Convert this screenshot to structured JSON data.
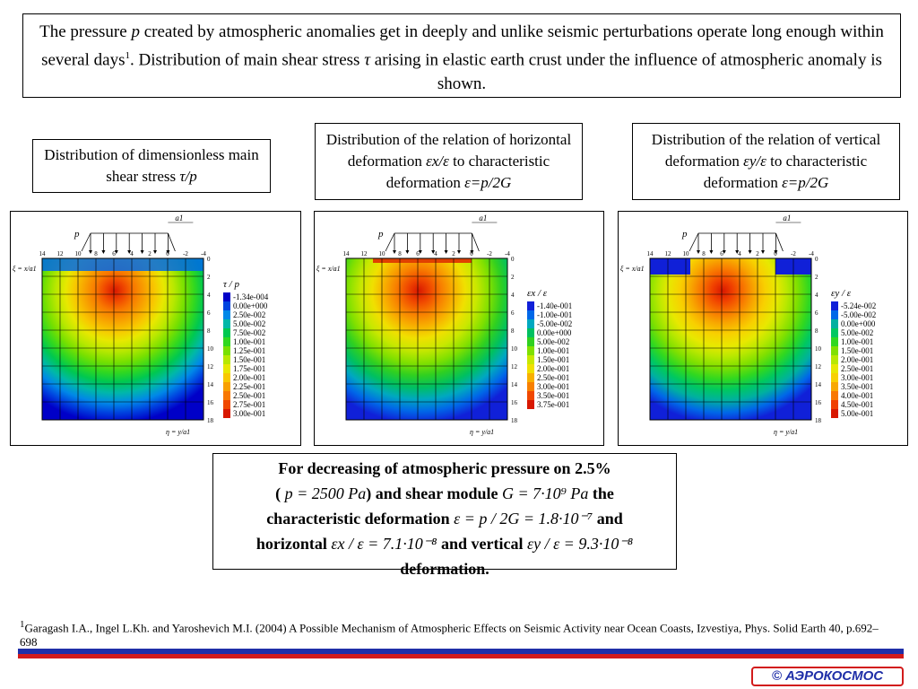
{
  "intro": {
    "line1a": "The pressure ",
    "p": "p",
    "line1b": " created by atmospheric anomalies get in deeply and unlike seismic perturbations operate long enough within several days",
    "sup": "1",
    "line2a": ". Distribution of main shear stress ",
    "tau": "τ",
    "line2b": " arising in elastic earth crust under the influence of atmospheric anomaly is shown."
  },
  "captions": [
    {
      "text": "Distribution of dimensionless main shear stress ",
      "math": "τ/p"
    },
    {
      "text": "Distribution of the relation of horizontal deformation ",
      "math": "εx/ε",
      "tail": " to characteristic deformation ",
      "math2": "ε=p/2G"
    },
    {
      "text": "Distribution of the relation of vertical deformation ",
      "math": "εy/ε",
      "tail": " to characteristic deformation ",
      "math2": "ε=p/2G"
    }
  ],
  "plot_common": {
    "top_ticks": [
      "14",
      "12",
      "10",
      "8",
      "6",
      "4",
      "2",
      "0",
      "-2",
      "-4"
    ],
    "right_ticks": [
      "0",
      "2",
      "4",
      "6",
      "8",
      "10",
      "12",
      "14",
      "16",
      "18"
    ],
    "p_label": "p",
    "a1_label": "a1",
    "xi_label": "ξ = x/a1",
    "eta_label": "η = y/a1"
  },
  "panels": [
    {
      "legend_title": "τ / p",
      "legend": [
        {
          "label": "-1.34e-004",
          "color": "#0000c8"
        },
        {
          "label": "0.00e+000",
          "color": "#0044e0"
        },
        {
          "label": "2.50e-002",
          "color": "#0088e8"
        },
        {
          "label": "5.00e-002",
          "color": "#00b8a8"
        },
        {
          "label": "7.50e-002",
          "color": "#00c850"
        },
        {
          "label": "1.00e-001",
          "color": "#30d820"
        },
        {
          "label": "1.25e-001",
          "color": "#78e000"
        },
        {
          "label": "1.50e-001",
          "color": "#b8e800"
        },
        {
          "label": "1.75e-001",
          "color": "#e8e800"
        },
        {
          "label": "2.00e-001",
          "color": "#f8c800"
        },
        {
          "label": "2.25e-001",
          "color": "#f8a000"
        },
        {
          "label": "2.50e-001",
          "color": "#f87800"
        },
        {
          "label": "2.75e-001",
          "color": "#f04800"
        },
        {
          "label": "3.00e-001",
          "color": "#d81800"
        }
      ]
    },
    {
      "legend_title": "εx / ε",
      "legend": [
        {
          "label": "-1.40e-001",
          "color": "#1020d8"
        },
        {
          "label": "-1.00e-001",
          "color": "#0068e8"
        },
        {
          "label": "-5.00e-002",
          "color": "#00a8c0"
        },
        {
          "label": "0.00e+000",
          "color": "#00c060"
        },
        {
          "label": "5.00e-002",
          "color": "#30d020"
        },
        {
          "label": "1.00e-001",
          "color": "#80e000"
        },
        {
          "label": "1.50e-001",
          "color": "#c8e800"
        },
        {
          "label": "2.00e-001",
          "color": "#f0e000"
        },
        {
          "label": "2.50e-001",
          "color": "#f8b000"
        },
        {
          "label": "3.00e-001",
          "color": "#f88000"
        },
        {
          "label": "3.50e-001",
          "color": "#f04800"
        },
        {
          "label": "3.75e-001",
          "color": "#d81800"
        }
      ]
    },
    {
      "legend_title": "εy / ε",
      "legend": [
        {
          "label": "-5.24e-002",
          "color": "#1020d8"
        },
        {
          "label": "-5.00e-002",
          "color": "#0068e8"
        },
        {
          "label": "0.00e+000",
          "color": "#00b0a0"
        },
        {
          "label": "5.00e-002",
          "color": "#00c860"
        },
        {
          "label": "1.00e-001",
          "color": "#30d820"
        },
        {
          "label": "1.50e-001",
          "color": "#80e000"
        },
        {
          "label": "2.00e-001",
          "color": "#b8e800"
        },
        {
          "label": "2.50e-001",
          "color": "#e8e800"
        },
        {
          "label": "3.00e-001",
          "color": "#f8d000"
        },
        {
          "label": "3.50e-001",
          "color": "#f8a800"
        },
        {
          "label": "4.00e-001",
          "color": "#f87800"
        },
        {
          "label": "4.50e-001",
          "color": "#f04000"
        },
        {
          "label": "5.00e-001",
          "color": "#d81800"
        }
      ]
    }
  ],
  "formula": {
    "l1": "For decreasing of atmospheric pressure on 2.5%",
    "l2a": "(",
    "l2m": "p = 2500 Pa",
    "l2b": ") and shear module ",
    "l2m2": "G = 7·10⁹ Pa",
    "l2c": " the",
    "l3a": "characteristic deformation ",
    "l3m": "ε = p / 2G = 1.8·10⁻⁷",
    "l3b": " and",
    "l4a": "horizontal ",
    "l4m": "εx / ε = 7.1·10⁻⁸",
    "l4b": " and vertical ",
    "l4m2": "εy / ε = 9.3·10⁻⁸",
    "l5": "deformation."
  },
  "reference": {
    "sup": "1",
    "text": "Garagash I.A., Ingel L.Kh. and Yaroshevich M.I. (2004) A Possible Mechanism of Atmospheric  Effects on Seismic Activity near Ocean Coasts, Izvestiya, Phys. Solid Earth 40, p.692–698"
  },
  "logo": {
    "text": "© АЭРОКОСМОС"
  },
  "colors": {
    "bar_blue": "#1f2fa8",
    "bar_red": "#d21b1b"
  }
}
